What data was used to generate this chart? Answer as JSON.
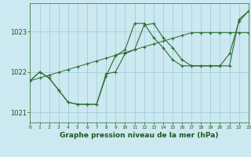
{
  "title": "Graphe pression niveau de la mer (hPa)",
  "background_color": "#cce8f0",
  "grid_color": "#99ccd9",
  "line_color": "#2d6e2d",
  "x_hours": [
    0,
    1,
    2,
    3,
    4,
    5,
    6,
    7,
    8,
    9,
    10,
    11,
    12,
    13,
    14,
    15,
    16,
    17,
    18,
    19,
    20,
    21,
    22,
    23
  ],
  "trend_line": [
    1021.78,
    1021.85,
    1021.92,
    1021.99,
    1022.06,
    1022.13,
    1022.2,
    1022.27,
    1022.34,
    1022.41,
    1022.48,
    1022.55,
    1022.62,
    1022.69,
    1022.76,
    1022.83,
    1022.9,
    1022.97,
    1022.97,
    1022.97,
    1022.97,
    1022.97,
    1022.97,
    1022.97
  ],
  "line2": [
    1021.78,
    1022.0,
    1021.85,
    1021.55,
    1021.25,
    1021.2,
    1021.2,
    1021.2,
    1021.9,
    1022.4,
    1022.55,
    1023.2,
    1023.2,
    1022.85,
    1022.6,
    1022.3,
    1022.15,
    1022.15,
    1022.15,
    1022.15,
    1022.15,
    1022.15,
    1023.3,
    1023.5
  ],
  "line3": [
    1021.78,
    1022.0,
    1021.85,
    1021.55,
    1021.25,
    1021.2,
    1021.2,
    1021.2,
    1021.95,
    1022.0,
    1022.45,
    1022.55,
    1023.15,
    1023.2,
    1022.85,
    1022.6,
    1022.3,
    1022.15,
    1022.15,
    1022.15,
    1022.15,
    1022.45,
    1023.25,
    1023.5
  ],
  "ylim": [
    1020.75,
    1023.7
  ],
  "yticks": [
    1021,
    1022,
    1023
  ],
  "xlim": [
    0,
    23
  ],
  "xticks": [
    0,
    1,
    2,
    3,
    4,
    5,
    6,
    7,
    8,
    9,
    10,
    11,
    12,
    13,
    14,
    15,
    16,
    17,
    18,
    19,
    20,
    21,
    22,
    23
  ]
}
